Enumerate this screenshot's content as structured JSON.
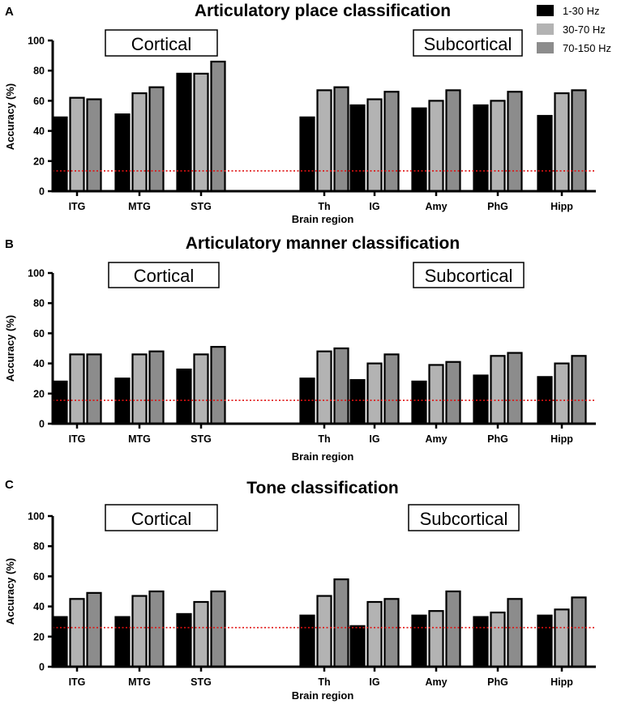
{
  "legend": [
    {
      "label": "1-30 Hz",
      "color": "#000000"
    },
    {
      "label": "30-70 Hz",
      "color": "#b3b3b3"
    },
    {
      "label": "70-150 Hz",
      "color": "#8c8c8c"
    }
  ],
  "chart_data": [
    {
      "type": "bar",
      "panel": "A",
      "title": "Articulatory place classification",
      "group_labels": {
        "cortical": "Cortical",
        "subcortical": "Subcortical"
      },
      "xlabel": "Brain region",
      "ylabel": "Accuracy (%)",
      "ylim": [
        0,
        100
      ],
      "yticks": [
        0,
        20,
        40,
        60,
        80,
        100
      ],
      "categories": [
        "ITG",
        "MTG",
        "STG",
        "Th",
        "IG",
        "Amy",
        "PhG",
        "Hipp"
      ],
      "series": [
        {
          "name": "1-30 Hz",
          "values": [
            49,
            51,
            78,
            49,
            57,
            55,
            57,
            50
          ]
        },
        {
          "name": "30-70 Hz",
          "values": [
            62,
            65,
            78,
            67,
            61,
            60,
            60,
            65
          ]
        },
        {
          "name": "70-150 Hz",
          "values": [
            61,
            69,
            86,
            69,
            66,
            67,
            66,
            67
          ]
        }
      ],
      "chance_level": 13.5
    },
    {
      "type": "bar",
      "panel": "B",
      "title": "Articulatory manner classification",
      "group_labels": {
        "cortical": "Cortical",
        "subcortical": "Subcortical"
      },
      "xlabel": "Brain region",
      "ylabel": "Accuracy (%)",
      "ylim": [
        0,
        100
      ],
      "yticks": [
        0,
        20,
        40,
        60,
        80,
        100
      ],
      "categories": [
        "ITG",
        "MTG",
        "STG",
        "Th",
        "IG",
        "Amy",
        "PhG",
        "Hipp"
      ],
      "series": [
        {
          "name": "1-30 Hz",
          "values": [
            28,
            30,
            36,
            30,
            29,
            28,
            32,
            31
          ]
        },
        {
          "name": "30-70 Hz",
          "values": [
            46,
            46,
            46,
            48,
            40,
            39,
            45,
            40
          ]
        },
        {
          "name": "70-150 Hz",
          "values": [
            46,
            48,
            51,
            50,
            46,
            41,
            47,
            45
          ]
        }
      ],
      "chance_level": 15.5
    },
    {
      "type": "bar",
      "panel": "C",
      "title": "Tone classification",
      "group_labels": {
        "cortical": "Cortical",
        "subcortical": "Subcortical"
      },
      "xlabel": "Brain region",
      "ylabel": "Accuracy (%)",
      "ylim": [
        0,
        100
      ],
      "yticks": [
        0,
        20,
        40,
        60,
        80,
        100
      ],
      "categories": [
        "ITG",
        "MTG",
        "STG",
        "Th",
        "IG",
        "Amy",
        "PhG",
        "Hipp"
      ],
      "series": [
        {
          "name": "1-30 Hz",
          "values": [
            33,
            33,
            35,
            34,
            27,
            34,
            33,
            34
          ]
        },
        {
          "name": "30-70 Hz",
          "values": [
            45,
            47,
            43,
            47,
            43,
            37,
            36,
            38
          ]
        },
        {
          "name": "70-150 Hz",
          "values": [
            49,
            50,
            50,
            58,
            45,
            50,
            45,
            46
          ]
        }
      ],
      "chance_level": 26
    }
  ]
}
